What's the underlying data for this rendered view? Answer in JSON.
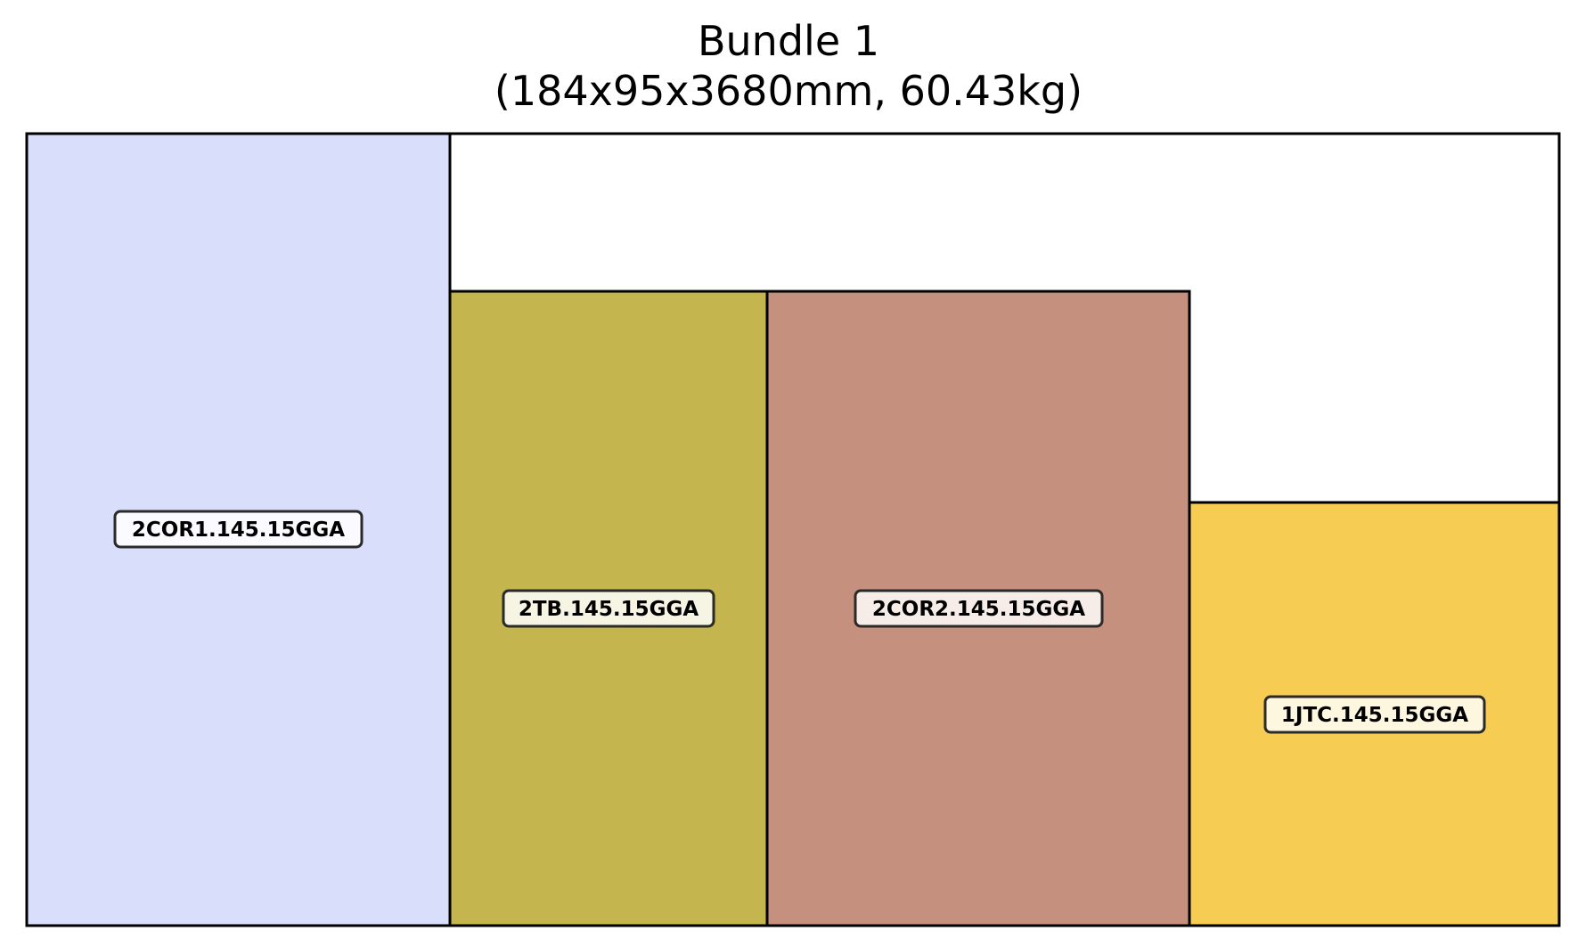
{
  "title": "Bundle 1",
  "subtitle": "(184x95x3680mm, 60.43kg)",
  "bundle": {
    "width_mm": 184,
    "height_mm": 95,
    "frame_color": "#000000",
    "background_color": "#ffffff"
  },
  "pieces": [
    {
      "id": "2COR1.145.15GGA",
      "label": "2COR1.145.15GGA",
      "color": "#d9defa",
      "label_bg": "#fbfbff"
    },
    {
      "id": "2TB.145.15GGA",
      "label": "2TB.145.15GGA",
      "color": "#c4b54e",
      "label_bg": "#f6f4e3"
    },
    {
      "id": "2COR2.145.15GGA",
      "label": "2COR2.145.15GGA",
      "color": "#c6907e",
      "label_bg": "#f6ede9"
    },
    {
      "id": "1JTC.145.15GGA",
      "label": "1JTC.145.15GGA",
      "color": "#f6cd52",
      "label_bg": "#fdf7e0"
    }
  ]
}
